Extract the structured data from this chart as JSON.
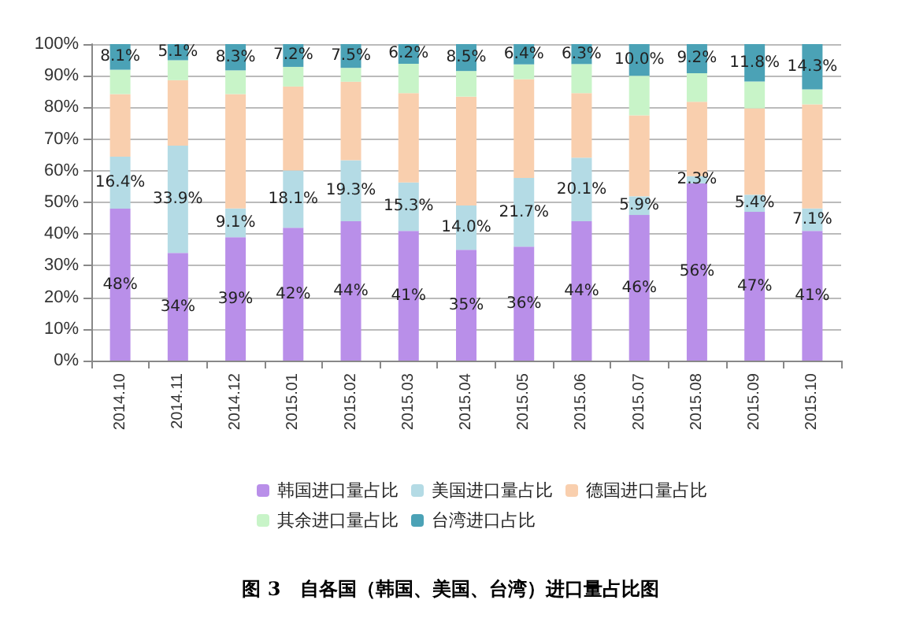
{
  "chart_data": {
    "type": "bar",
    "stacked": true,
    "title": "图 3　自各国（韩国、美国、台湾）进口量占比图",
    "categories": [
      "2014.10",
      "2014.11",
      "2014.12",
      "2015.01",
      "2015.02",
      "2015.03",
      "2015.04",
      "2015.05",
      "2015.06",
      "2015.07",
      "2015.08",
      "2015.09",
      "2015.10"
    ],
    "series": [
      {
        "name": "韩国进口量占比",
        "color": "#b98fe9",
        "values": [
          48,
          34,
          39,
          42,
          44,
          41,
          35,
          36,
          44,
          46,
          56,
          47,
          41
        ],
        "value_labels": [
          "48%",
          "34%",
          "39%",
          "42%",
          "44%",
          "41%",
          "35%",
          "36%",
          "44%",
          "46%",
          "56%",
          "47%",
          "41%"
        ]
      },
      {
        "name": "美国进口量占比",
        "color": "#b4dbe5",
        "values": [
          16.4,
          33.9,
          9.1,
          18.1,
          19.3,
          15.3,
          14.0,
          21.7,
          20.1,
          5.9,
          2.3,
          5.4,
          7.1
        ],
        "value_labels": [
          "16.4%",
          "33.9%",
          "9.1%",
          "18.1%",
          "19.3%",
          "15.3%",
          "14.0%",
          "21.7%",
          "20.1%",
          "5.9%",
          "2.3%",
          "5.4%",
          "7.1%"
        ]
      },
      {
        "name": "德国进口量占比",
        "color": "#f9cfae",
        "values": [
          19.8,
          20.7,
          36.1,
          26.5,
          24.8,
          28.2,
          34.4,
          31.2,
          20.4,
          25.6,
          23.5,
          27.3,
          32.9
        ]
      },
      {
        "name": "其余进口量占比",
        "color": "#c8f4c8",
        "values": [
          7.7,
          6.3,
          7.5,
          6.2,
          4.4,
          9.3,
          8.1,
          4.7,
          9.2,
          12.5,
          9.0,
          8.5,
          4.7
        ]
      },
      {
        "name": "台湾进口占比",
        "color": "#4ba2b6",
        "values": [
          8.1,
          5.1,
          8.3,
          7.2,
          7.5,
          6.2,
          8.5,
          6.4,
          6.3,
          10.0,
          9.2,
          11.8,
          14.3
        ],
        "value_labels": [
          "8.1%",
          "5.1%",
          "8.3%",
          "7.2%",
          "7.5%",
          "6.2%",
          "8.5%",
          "6.4%",
          "6.3%",
          "10.0%",
          "9.2%",
          "11.8%",
          "14.3%"
        ]
      }
    ],
    "ylim": [
      0,
      100
    ],
    "yticks": [
      {
        "value": 0,
        "label": "0%"
      },
      {
        "value": 10,
        "label": "10%"
      },
      {
        "value": 20,
        "label": "20%"
      },
      {
        "value": 30,
        "label": "30%"
      },
      {
        "value": 40,
        "label": "40%"
      },
      {
        "value": 50,
        "label": "50%"
      },
      {
        "value": 60,
        "label": "60%"
      },
      {
        "value": 70,
        "label": "70%"
      },
      {
        "value": 80,
        "label": "80%"
      },
      {
        "value": 90,
        "label": "90%"
      },
      {
        "value": 100,
        "label": "100%"
      }
    ],
    "grid": "y",
    "legend": "bottom"
  }
}
